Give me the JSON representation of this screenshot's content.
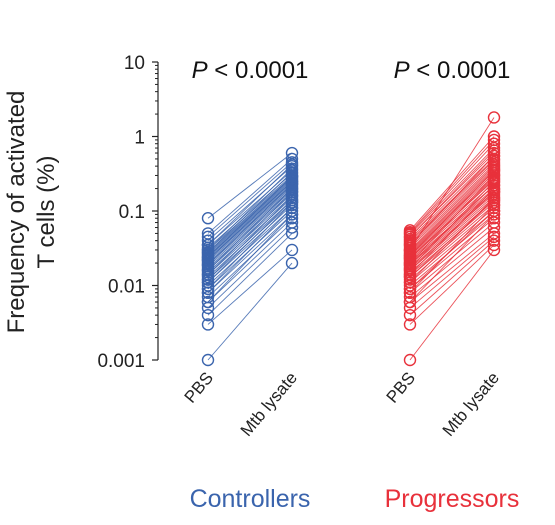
{
  "chart_data": {
    "type": "scatter",
    "y_scale": "log",
    "ylim": [
      0.001,
      10
    ],
    "ylabel_lines": [
      "Frequency of  activated",
      "T cells (%)"
    ],
    "yticks": [
      {
        "value": 0.001,
        "label": "0.001"
      },
      {
        "value": 0.01,
        "label": "0.01"
      },
      {
        "value": 0.1,
        "label": "0.1"
      },
      {
        "value": 1,
        "label": "1"
      },
      {
        "value": 10,
        "label": "10"
      }
    ],
    "categories": [
      "PBS",
      "Mtb lysate"
    ],
    "grid": false,
    "groups": [
      {
        "name": "Controllers",
        "color": "#3a64ad",
        "p_label": "P",
        "p_value": " < 0.0001",
        "pairs": [
          [
            0.001,
            0.02
          ],
          [
            0.003,
            0.03
          ],
          [
            0.004,
            0.05
          ],
          [
            0.005,
            0.06
          ],
          [
            0.006,
            0.07
          ],
          [
            0.007,
            0.08
          ],
          [
            0.008,
            0.09
          ],
          [
            0.009,
            0.1
          ],
          [
            0.01,
            0.11
          ],
          [
            0.011,
            0.12
          ],
          [
            0.012,
            0.13
          ],
          [
            0.013,
            0.14
          ],
          [
            0.014,
            0.15
          ],
          [
            0.015,
            0.16
          ],
          [
            0.016,
            0.17
          ],
          [
            0.017,
            0.18
          ],
          [
            0.018,
            0.19
          ],
          [
            0.019,
            0.2
          ],
          [
            0.02,
            0.21
          ],
          [
            0.021,
            0.22
          ],
          [
            0.022,
            0.23
          ],
          [
            0.023,
            0.24
          ],
          [
            0.024,
            0.25
          ],
          [
            0.025,
            0.26
          ],
          [
            0.026,
            0.27
          ],
          [
            0.027,
            0.28
          ],
          [
            0.028,
            0.29
          ],
          [
            0.03,
            0.3
          ],
          [
            0.032,
            0.32
          ],
          [
            0.035,
            0.35
          ],
          [
            0.04,
            0.4
          ],
          [
            0.045,
            0.45
          ],
          [
            0.05,
            0.5
          ],
          [
            0.08,
            0.6
          ],
          [
            0.009,
            0.13
          ],
          [
            0.012,
            0.16
          ],
          [
            0.016,
            0.2
          ],
          [
            0.022,
            0.25
          ],
          [
            0.028,
            0.33
          ],
          [
            0.035,
            0.42
          ],
          [
            0.006,
            0.09
          ],
          [
            0.008,
            0.11
          ],
          [
            0.011,
            0.14
          ],
          [
            0.014,
            0.18
          ],
          [
            0.019,
            0.23
          ],
          [
            0.024,
            0.29
          ],
          [
            0.03,
            0.37
          ]
        ]
      },
      {
        "name": "Progressors",
        "color": "#e8313b",
        "p_label": "P",
        "p_value": " < 0.0001",
        "pairs": [
          [
            0.001,
            0.03
          ],
          [
            0.003,
            0.035
          ],
          [
            0.004,
            0.04
          ],
          [
            0.005,
            0.045
          ],
          [
            0.006,
            0.05
          ],
          [
            0.007,
            0.06
          ],
          [
            0.008,
            0.07
          ],
          [
            0.009,
            0.08
          ],
          [
            0.01,
            0.09
          ],
          [
            0.011,
            0.1
          ],
          [
            0.012,
            0.11
          ],
          [
            0.013,
            0.12
          ],
          [
            0.014,
            0.13
          ],
          [
            0.015,
            0.14
          ],
          [
            0.016,
            0.15
          ],
          [
            0.017,
            0.16
          ],
          [
            0.018,
            0.17
          ],
          [
            0.019,
            0.18
          ],
          [
            0.02,
            0.19
          ],
          [
            0.021,
            0.2
          ],
          [
            0.022,
            0.22
          ],
          [
            0.023,
            0.24
          ],
          [
            0.024,
            0.26
          ],
          [
            0.025,
            0.28
          ],
          [
            0.026,
            0.3
          ],
          [
            0.027,
            0.32
          ],
          [
            0.028,
            0.34
          ],
          [
            0.029,
            0.36
          ],
          [
            0.03,
            0.38
          ],
          [
            0.032,
            0.4
          ],
          [
            0.034,
            0.42
          ],
          [
            0.036,
            0.45
          ],
          [
            0.038,
            0.48
          ],
          [
            0.04,
            0.5
          ],
          [
            0.042,
            0.55
          ],
          [
            0.045,
            0.6
          ],
          [
            0.048,
            0.7
          ],
          [
            0.05,
            0.8
          ],
          [
            0.052,
            0.9
          ],
          [
            0.055,
            1.0
          ],
          [
            0.03,
            1.8
          ],
          [
            0.008,
            0.12
          ],
          [
            0.011,
            0.15
          ],
          [
            0.014,
            0.2
          ],
          [
            0.017,
            0.25
          ],
          [
            0.02,
            0.3
          ],
          [
            0.025,
            0.35
          ],
          [
            0.035,
            0.55
          ],
          [
            0.045,
            0.65
          ],
          [
            0.006,
            0.09
          ],
          [
            0.009,
            0.1
          ],
          [
            0.013,
            0.14
          ],
          [
            0.016,
            0.18
          ],
          [
            0.019,
            0.22
          ],
          [
            0.023,
            0.27
          ]
        ]
      }
    ]
  }
}
